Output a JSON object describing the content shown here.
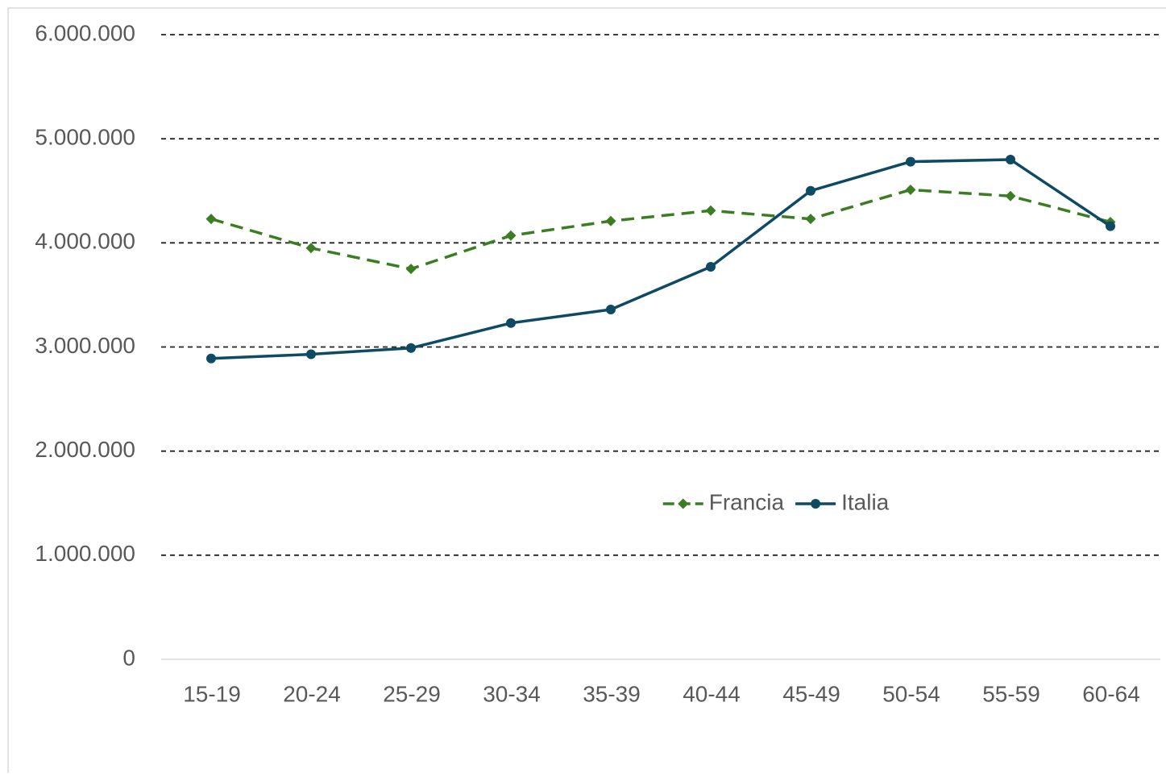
{
  "chart_data": {
    "type": "line",
    "categories": [
      "15-19",
      "20-24",
      "25-29",
      "30-34",
      "35-39",
      "40-44",
      "45-49",
      "50-54",
      "55-59",
      "60-64"
    ],
    "series": [
      {
        "name": "Francia",
        "color": "#3b7d23",
        "dashed": true,
        "marker": "diamond",
        "values": [
          4230000,
          3950000,
          3750000,
          4070000,
          4210000,
          4310000,
          4230000,
          4510000,
          4450000,
          4200000
        ]
      },
      {
        "name": "Italia",
        "color": "#0e4a63",
        "dashed": false,
        "marker": "circle",
        "values": [
          2890000,
          2930000,
          2990000,
          3230000,
          3360000,
          3770000,
          4500000,
          4780000,
          4800000,
          4160000
        ]
      }
    ],
    "ylim": [
      0,
      6000000
    ],
    "yticks": [
      0,
      {
        "value": 1000000,
        "label": "1.000.000"
      },
      {
        "value": 2000000,
        "label": "2.000.000"
      },
      {
        "value": 3000000,
        "label": "3.000.000"
      },
      {
        "value": 4000000,
        "label": "4.000.000"
      },
      {
        "value": 5000000,
        "label": "5.000.000"
      },
      {
        "value": 6000000,
        "label": "6.000.000"
      }
    ],
    "grid": true,
    "legend": "center"
  }
}
